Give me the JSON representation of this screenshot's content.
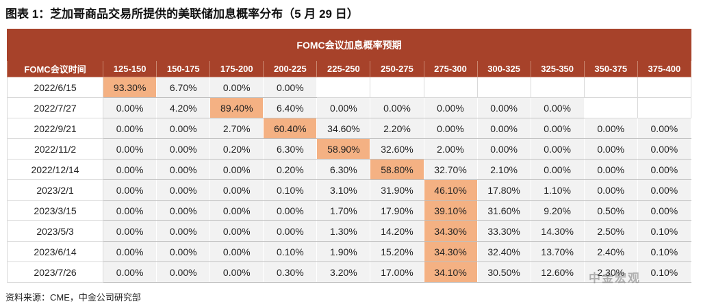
{
  "header": {
    "title": "图表 1：芝加哥商品交易所提供的美联储加息概率分布（5 月 29 日）"
  },
  "table": {
    "band": "FOMC会议加息概率预期",
    "columns": [
      "FOMC会议时间",
      "125-150",
      "150-175",
      "175-200",
      "200-225",
      "225-250",
      "250-275",
      "275-300",
      "300-325",
      "325-350",
      "350-375",
      "375-400"
    ],
    "rows": [
      [
        "2022/6/15",
        "93.30%",
        "6.70%",
        "0.00%",
        "0.00%",
        null,
        null,
        null,
        null,
        null,
        null,
        null
      ],
      [
        "2022/7/27",
        "0.00%",
        "4.20%",
        "89.40%",
        "6.40%",
        "0.00%",
        "0.00%",
        "0.00%",
        "0.00%",
        "0.00%",
        null,
        null
      ],
      [
        "2022/9/21",
        "0.00%",
        "0.00%",
        "2.70%",
        "60.40%",
        "34.60%",
        "2.20%",
        "0.00%",
        "0.00%",
        "0.00%",
        "0.00%",
        "0.00%"
      ],
      [
        "2022/11/2",
        "0.00%",
        "0.00%",
        "0.20%",
        "6.30%",
        "58.90%",
        "32.60%",
        "2.00%",
        "0.00%",
        "0.00%",
        "0.00%",
        "0.00%"
      ],
      [
        "2022/12/14",
        "0.00%",
        "0.00%",
        "0.00%",
        "0.20%",
        "6.30%",
        "58.80%",
        "32.70%",
        "2.10%",
        "0.00%",
        "0.00%",
        "0.00%"
      ],
      [
        "2023/2/1",
        "0.00%",
        "0.00%",
        "0.00%",
        "0.10%",
        "3.10%",
        "31.90%",
        "46.10%",
        "17.80%",
        "1.10%",
        "0.00%",
        "0.00%"
      ],
      [
        "2023/3/15",
        "0.00%",
        "0.00%",
        "0.00%",
        "0.00%",
        "1.70%",
        "17.90%",
        "39.10%",
        "31.60%",
        "9.20%",
        "0.50%",
        "0.00%"
      ],
      [
        "2023/5/3",
        "0.00%",
        "0.00%",
        "0.00%",
        "0.00%",
        "1.30%",
        "14.20%",
        "34.30%",
        "33.30%",
        "14.30%",
        "2.50%",
        "0.10%"
      ],
      [
        "2023/6/14",
        "0.00%",
        "0.00%",
        "0.00%",
        "0.10%",
        "1.90%",
        "15.20%",
        "34.30%",
        "32.40%",
        "13.70%",
        "2.40%",
        "0.10%"
      ],
      [
        "2023/7/26",
        "0.00%",
        "0.00%",
        "0.00%",
        "0.30%",
        "3.20%",
        "17.00%",
        "34.10%",
        "30.50%",
        "12.60%",
        "2.30%",
        "0.10%"
      ]
    ]
  },
  "footer": {
    "source": "资料来源：CME，中金公司研究部",
    "watermark": "中金宏观"
  }
}
